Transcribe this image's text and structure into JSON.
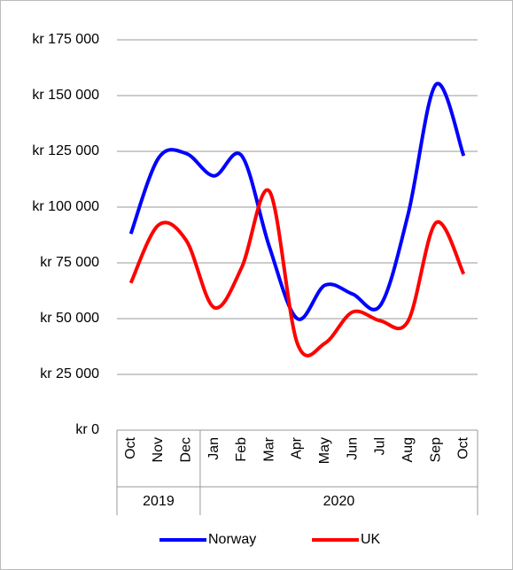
{
  "chart_data": {
    "type": "line",
    "categories": [
      "Oct",
      "Nov",
      "Dec",
      "Jan",
      "Feb",
      "Mar",
      "Apr",
      "May",
      "Jun",
      "Jul",
      "Aug",
      "Sep",
      "Oct"
    ],
    "groups": [
      {
        "name": "2019",
        "count": 3
      },
      {
        "name": "2020",
        "count": 10
      }
    ],
    "series": [
      {
        "name": "Norway",
        "color": "#0000ff",
        "values": [
          88000,
          122000,
          124000,
          114000,
          123000,
          82000,
          50000,
          65000,
          61000,
          56000,
          97000,
          155000,
          123000
        ]
      },
      {
        "name": "UK",
        "color": "#ff0000",
        "values": [
          66000,
          92000,
          85000,
          55000,
          73000,
          107000,
          39000,
          39000,
          53000,
          49000,
          49000,
          93000,
          70000
        ]
      }
    ],
    "ylim": [
      0,
      175000
    ],
    "yticks": [
      {
        "value": 0,
        "label": "kr 0"
      },
      {
        "value": 25000,
        "label": "kr 25 000"
      },
      {
        "value": 50000,
        "label": "kr 50 000"
      },
      {
        "value": 75000,
        "label": "kr 75 000"
      },
      {
        "value": 100000,
        "label": "kr 100 000"
      },
      {
        "value": 125000,
        "label": "kr 125 000"
      },
      {
        "value": 150000,
        "label": "kr 150 000"
      },
      {
        "value": 175000,
        "label": "kr 175 000"
      }
    ],
    "grid": true,
    "smooth": true,
    "legend": "bottom"
  }
}
